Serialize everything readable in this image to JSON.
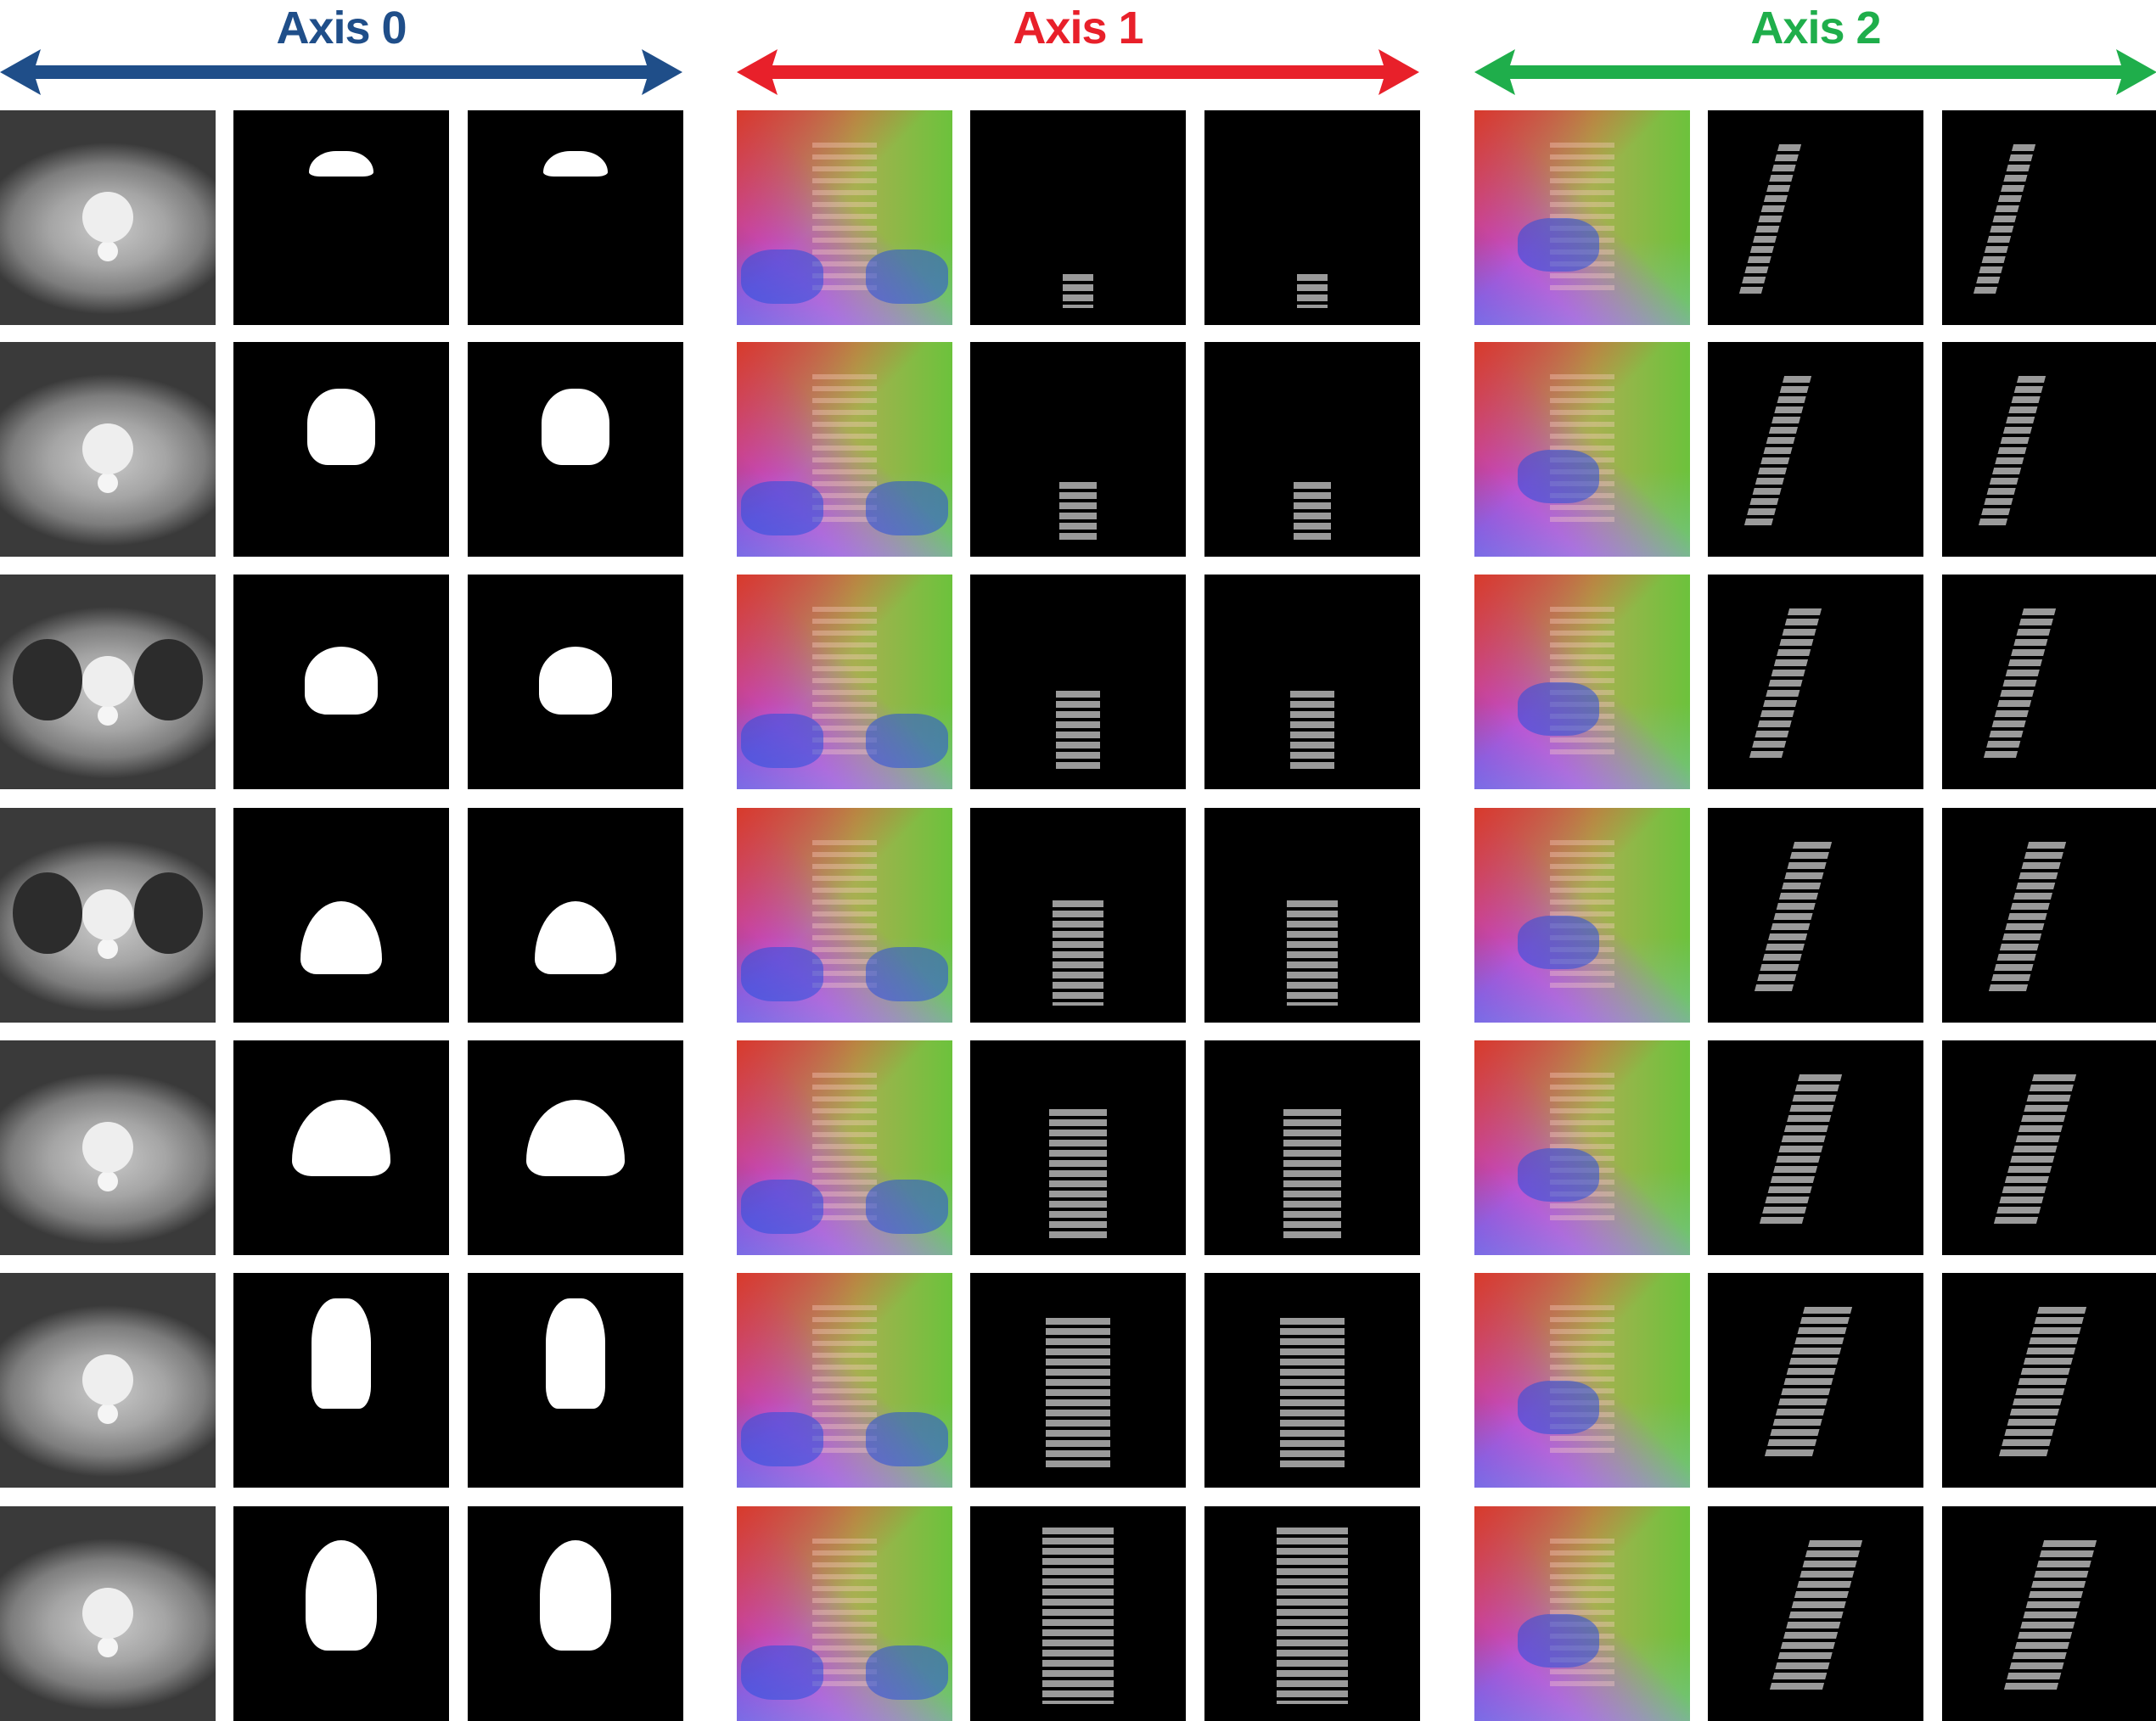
{
  "axes": [
    {
      "label": "Axis 0",
      "color": "#1f4e89"
    },
    {
      "label": "Axis 1",
      "color": "#e8202a"
    },
    {
      "label": "Axis 2",
      "color": "#1fae4b"
    }
  ],
  "grid": {
    "rows": 7,
    "columns_per_axis": [
      [
        "ct-slice",
        "mask",
        "mask"
      ],
      [
        "displacement-color-map",
        "segmentation",
        "segmentation"
      ],
      [
        "displacement-color-map",
        "segmentation",
        "segmentation"
      ]
    ]
  }
}
